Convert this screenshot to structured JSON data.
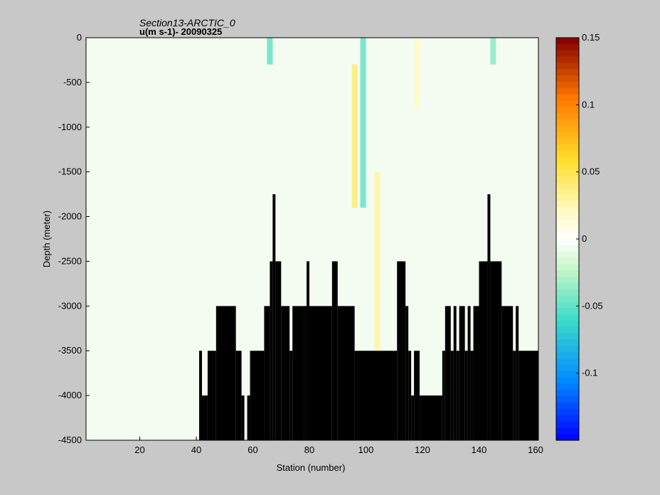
{
  "chart_data": {
    "type": "heatmap",
    "title": "Section13-ARCTIC_0",
    "subtitle": "u(m s-1)- 20090325",
    "xlabel": "Station (number)",
    "ylabel": "Depth (meter)",
    "xlim": [
      1,
      161
    ],
    "ylim": [
      -4500,
      0
    ],
    "xticks": [
      20,
      40,
      60,
      80,
      100,
      120,
      140,
      160
    ],
    "yticks": [
      0,
      -500,
      -1000,
      -1500,
      -2000,
      -2500,
      -3000,
      -3500,
      -4000,
      -4500
    ],
    "colorbar": {
      "range": [
        -0.15,
        0.15
      ],
      "ticks": [
        0.15,
        0.1,
        0.05,
        0,
        -0.05,
        -0.1
      ],
      "tick_labels": [
        "0.15",
        "0.1",
        "0.05",
        "0",
        "-0.05",
        "-0.1"
      ],
      "colormap": "jet-white-center"
    },
    "bottom_mask_color": "#000000",
    "bathymetry_profile_depth_m": [
      [
        1,
        -4500
      ],
      [
        40,
        -4500
      ],
      [
        41,
        -3500
      ],
      [
        42,
        -4000
      ],
      [
        44,
        -3500
      ],
      [
        47,
        -3000
      ],
      [
        54,
        -3500
      ],
      [
        56,
        -4000
      ],
      [
        57,
        -4500
      ],
      [
        58,
        -4000
      ],
      [
        59,
        -3500
      ],
      [
        64,
        -3000
      ],
      [
        66,
        -2500
      ],
      [
        67,
        -1750
      ],
      [
        68,
        -2500
      ],
      [
        70,
        -3000
      ],
      [
        73,
        -3500
      ],
      [
        74,
        -3000
      ],
      [
        78,
        -3000
      ],
      [
        79,
        -2500
      ],
      [
        80,
        -3000
      ],
      [
        88,
        -2500
      ],
      [
        90,
        -3000
      ],
      [
        96,
        -3500
      ],
      [
        111,
        -2500
      ],
      [
        114,
        -3000
      ],
      [
        115,
        -3500
      ],
      [
        116,
        -4000
      ],
      [
        117,
        -3500
      ],
      [
        119,
        -4000
      ],
      [
        127,
        -3500
      ],
      [
        128,
        -3000
      ],
      [
        130,
        -3500
      ],
      [
        131,
        -3000
      ],
      [
        132,
        -3500
      ],
      [
        133,
        -3000
      ],
      [
        135,
        -3500
      ],
      [
        136,
        -3000
      ],
      [
        137,
        -3500
      ],
      [
        138,
        -3000
      ],
      [
        140,
        -2500
      ],
      [
        143,
        -1750
      ],
      [
        144,
        -2500
      ],
      [
        148,
        -3000
      ],
      [
        152,
        -3500
      ],
      [
        153,
        -3000
      ],
      [
        154,
        -3500
      ],
      [
        161,
        -3500
      ]
    ],
    "velocity_features": [
      {
        "station": 99,
        "depth_top": 0,
        "depth_bottom": -1900,
        "u": -0.05
      },
      {
        "station": 96,
        "depth_top": -300,
        "depth_bottom": -1900,
        "u": 0.04
      },
      {
        "station": 104,
        "depth_top": -1500,
        "depth_bottom": -3500,
        "u": 0.03
      },
      {
        "station": 66,
        "depth_top": 0,
        "depth_bottom": -300,
        "u": -0.05
      },
      {
        "station": 145,
        "depth_top": 0,
        "depth_bottom": -300,
        "u": -0.04
      },
      {
        "station": 118,
        "depth_top": 0,
        "depth_bottom": -800,
        "u": 0.02
      }
    ]
  }
}
